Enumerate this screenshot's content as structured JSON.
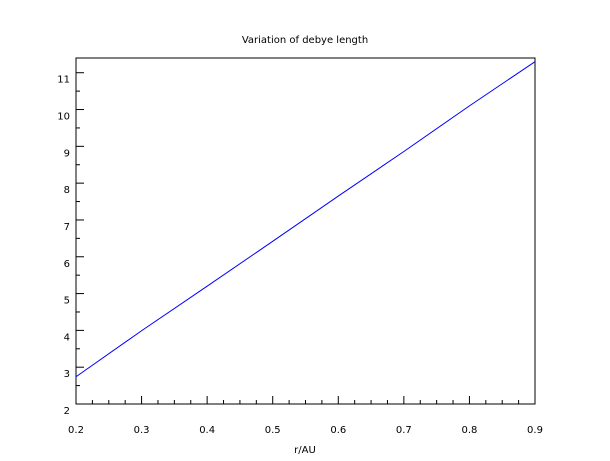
{
  "chart_data": {
    "type": "line",
    "title": "Variation of debye length",
    "xlabel": "r/AU",
    "ylabel": "",
    "xlim": [
      0.2,
      0.9
    ],
    "ylim": [
      2,
      11.4
    ],
    "x_ticks": [
      "0.2",
      "0.3",
      "0.4",
      "0.5",
      "0.6",
      "0.7",
      "0.8",
      "0.9"
    ],
    "y_ticks": [
      "2",
      "3",
      "4",
      "5",
      "6",
      "7",
      "8",
      "9",
      "10",
      "11"
    ],
    "grid": false,
    "series": [
      {
        "color": "#0000ff",
        "x": [
          0.2,
          0.3,
          0.4,
          0.5,
          0.6,
          0.7,
          0.8,
          0.9
        ],
        "y": [
          2.74,
          3.99,
          5.2,
          6.42,
          7.65,
          8.86,
          10.1,
          11.3
        ]
      }
    ]
  }
}
